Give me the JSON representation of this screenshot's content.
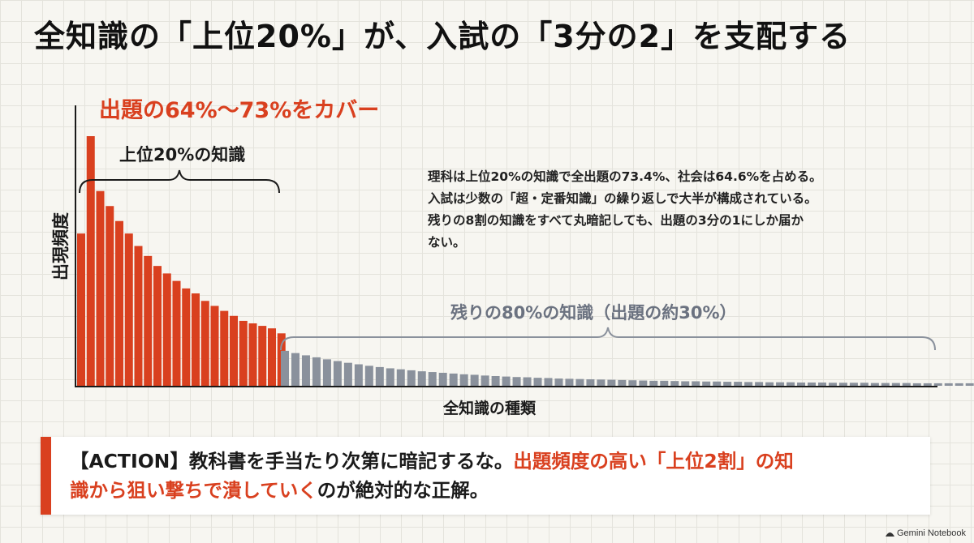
{
  "title": "全知識の「上位20%」が、入試の「3分の2」を支配する",
  "colors": {
    "accent": "#d9401f",
    "gray": "#8a919c",
    "text": "#1a1a1a"
  },
  "chart_data": {
    "type": "bar",
    "ylabel": "出現頻度",
    "xlabel": "全知識の種類",
    "series": [
      {
        "name": "上位20%の知識",
        "color": "#d9401f",
        "values": [
          61,
          100,
          78,
          72,
          66,
          61,
          56,
          52,
          48,
          45,
          42,
          39,
          37,
          34,
          32,
          30,
          28,
          26,
          25,
          24,
          23,
          21
        ]
      },
      {
        "name": "残りの80%の知識",
        "color": "#8a919c",
        "values": [
          14,
          13.1,
          12.2,
          11.4,
          10.6,
          9.9,
          9.2,
          8.6,
          8.0,
          7.5,
          7.0,
          6.6,
          6.2,
          5.8,
          5.5,
          5.2,
          4.9,
          4.6,
          4.4,
          4.1,
          3.9,
          3.7,
          3.5,
          3.4,
          3.2,
          3.1,
          2.9,
          2.8,
          2.7,
          2.6,
          2.5,
          2.4,
          2.3,
          2.2,
          2.1,
          2.0,
          2.0,
          1.9,
          1.8,
          1.8,
          1.7,
          1.7,
          1.6,
          1.6,
          1.5,
          1.5,
          1.4,
          1.4,
          1.4,
          1.3,
          1.3,
          1.3,
          1.2,
          1.2,
          1.2,
          1.2,
          1.1,
          1.1,
          1.1,
          1.1,
          1.0,
          1.0,
          1.0,
          1.0,
          1.0,
          1.0,
          0.9,
          0.9,
          0.9,
          0.9,
          0.9,
          0.9,
          0.9,
          0.9,
          0.9,
          0.9,
          0.9,
          0.9,
          0.9,
          0.9,
          0.9,
          0.9
        ]
      }
    ],
    "annotations": {
      "cover_headline": "出題の64%〜73%をカバー",
      "top_bracket_label": "上位20%の知識",
      "rest_bracket_label": "残りの80%の知識（出題の約30%）"
    }
  },
  "note_lines": [
    "理科は上位20%の知識で全出題の73.4%、社会は64.6%を占める。",
    "入試は少数の「超・定番知識」の繰り返しで大半が構成されている。",
    "残りの8割の知識をすべて丸暗記しても、出題の3分の1にしか届か",
    "ない。"
  ],
  "action": {
    "line1_plain": "【ACTION】教科書を手当たり次第に暗記するな。",
    "line1_highlight": "出題頻度の高い「上位2割」の知",
    "line2_highlight": "識から狙い撃ちで潰していく",
    "line2_plain": "のが絶対的な正解。"
  },
  "footer": {
    "brand": "Gemini Notebook",
    "icon": "gemini-notebook-icon"
  }
}
